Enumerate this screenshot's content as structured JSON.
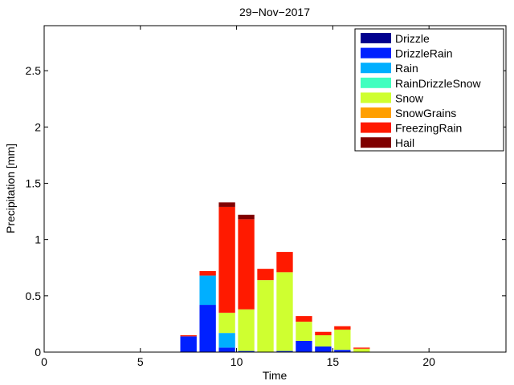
{
  "chart_data": {
    "type": "bar",
    "stacked": true,
    "title": "29−Nov−2017",
    "xlabel": "Time",
    "ylabel": "Precipitation [mm]",
    "xlim": [
      0,
      24
    ],
    "ylim": [
      0,
      2.9
    ],
    "xticks": [
      0,
      5,
      10,
      15,
      20
    ],
    "xtick_labels": [
      "0",
      "5",
      "10",
      "15",
      "20"
    ],
    "yticks": [
      0,
      0.5,
      1,
      1.5,
      2,
      2.5
    ],
    "ytick_labels": [
      "0",
      "0.5",
      "1",
      "1.5",
      "2",
      "2.5"
    ],
    "grid": false,
    "legend_position": "top-right",
    "bar_width": 0.85,
    "x": [
      7.5,
      8.5,
      9.5,
      10.5,
      11.5,
      12.5,
      13.5,
      14.5,
      15.5,
      16.5
    ],
    "series": [
      {
        "name": "Drizzle",
        "color": "#00008f",
        "values": [
          0,
          0,
          0,
          0,
          0,
          0,
          0,
          0,
          0,
          0
        ]
      },
      {
        "name": "DrizzleRain",
        "color": "#0020ff",
        "values": [
          0.14,
          0.42,
          0.04,
          0.01,
          0,
          0.01,
          0.1,
          0.05,
          0.02,
          0
        ]
      },
      {
        "name": "Rain",
        "color": "#00afff",
        "values": [
          0,
          0.26,
          0.13,
          0,
          0,
          0,
          0,
          0,
          0,
          0
        ]
      },
      {
        "name": "RainDrizzleSnow",
        "color": "#40ffbf",
        "values": [
          0,
          0,
          0,
          0,
          0,
          0,
          0,
          0,
          0,
          0
        ]
      },
      {
        "name": "Snow",
        "color": "#cfff30",
        "values": [
          0,
          0,
          0.18,
          0.37,
          0.64,
          0.7,
          0.17,
          0.1,
          0.18,
          0.03
        ]
      },
      {
        "name": "SnowGrains",
        "color": "#ff9f00",
        "values": [
          0,
          0,
          0,
          0,
          0,
          0,
          0,
          0,
          0,
          0
        ]
      },
      {
        "name": "FreezingRain",
        "color": "#ff1a00",
        "values": [
          0.01,
          0.04,
          0.94,
          0.8,
          0.1,
          0.18,
          0.05,
          0.03,
          0.03,
          0.01
        ]
      },
      {
        "name": "Hail",
        "color": "#800000",
        "values": [
          0,
          0,
          0.04,
          0.04,
          0,
          0,
          0,
          0,
          0,
          0
        ]
      }
    ]
  }
}
